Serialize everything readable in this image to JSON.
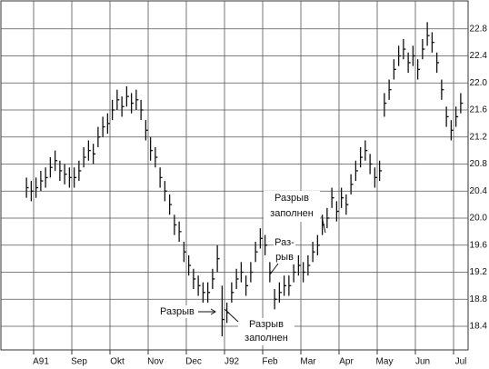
{
  "chart_data": {
    "type": "ohlc",
    "categories": [
      null,
      null,
      "A91",
      null,
      null,
      null,
      null,
      null,
      null,
      null,
      "Sep",
      null,
      null,
      null,
      null,
      null,
      null,
      null,
      "Okt",
      null,
      null,
      null,
      null,
      null,
      null,
      null,
      "Nov",
      null,
      null,
      null,
      null,
      null,
      null,
      null,
      "Dec",
      null,
      null,
      null,
      null,
      null,
      null,
      null,
      "J92",
      null,
      null,
      null,
      null,
      null,
      null,
      null,
      "Feb",
      null,
      null,
      null,
      null,
      null,
      null,
      null,
      "Mar",
      null,
      null,
      null,
      null,
      null,
      null,
      null,
      "Apr",
      null,
      null,
      null,
      null,
      null,
      null,
      null,
      "May",
      null,
      null,
      null,
      null,
      null,
      null,
      null,
      "Jun",
      null,
      null,
      null,
      null,
      null,
      null,
      null,
      "Jul",
      null
    ],
    "high": [
      20.6,
      20.55,
      20.6,
      20.7,
      20.75,
      20.9,
      21.0,
      20.85,
      20.8,
      20.75,
      20.75,
      20.85,
      21.05,
      21.15,
      21.1,
      21.35,
      21.5,
      21.55,
      21.75,
      21.9,
      21.8,
      21.95,
      21.85,
      21.9,
      21.75,
      21.45,
      21.2,
      21.05,
      20.75,
      20.55,
      20.35,
      20.05,
      19.95,
      19.65,
      19.45,
      19.25,
      19.15,
      19.05,
      19.05,
      19.25,
      19.6,
      19.0,
      18.75,
      19.05,
      19.25,
      19.35,
      19.15,
      19.35,
      19.65,
      19.85,
      19.75,
      19.35,
      18.95,
      19.05,
      19.15,
      19.15,
      19.35,
      19.45,
      19.35,
      19.45,
      19.65,
      19.75,
      20.05,
      20.15,
      20.45,
      20.25,
      20.45,
      20.35,
      20.65,
      20.85,
      21.05,
      21.15,
      20.95,
      20.75,
      20.85,
      21.85,
      22.05,
      22.35,
      22.55,
      22.65,
      22.45,
      22.55,
      22.35,
      22.65,
      22.9,
      22.75,
      22.45,
      22.05,
      21.65,
      21.45,
      21.65,
      21.85
    ],
    "low": [
      20.3,
      20.25,
      20.3,
      20.4,
      20.45,
      20.6,
      20.7,
      20.55,
      20.5,
      20.45,
      20.45,
      20.55,
      20.75,
      20.85,
      20.8,
      21.05,
      21.2,
      21.25,
      21.45,
      21.6,
      21.5,
      21.65,
      21.55,
      21.6,
      21.45,
      21.15,
      20.85,
      20.75,
      20.45,
      20.25,
      20.05,
      19.75,
      19.65,
      19.35,
      19.15,
      18.95,
      18.85,
      18.75,
      18.75,
      18.95,
      19.2,
      18.25,
      18.45,
      18.75,
      18.95,
      19.05,
      18.85,
      19.05,
      19.35,
      19.55,
      19.45,
      19.05,
      18.65,
      18.75,
      18.85,
      18.85,
      19.05,
      19.15,
      19.05,
      19.15,
      19.35,
      19.45,
      19.75,
      19.85,
      20.15,
      19.95,
      20.15,
      20.05,
      20.35,
      20.55,
      20.75,
      20.85,
      20.65,
      20.45,
      20.55,
      21.5,
      21.75,
      22.05,
      22.25,
      22.35,
      22.15,
      22.25,
      22.05,
      22.35,
      22.55,
      22.45,
      22.15,
      21.75,
      21.35,
      21.15,
      21.35,
      21.55
    ],
    "close": [
      20.45,
      20.4,
      20.45,
      20.55,
      20.6,
      20.75,
      20.85,
      20.7,
      20.65,
      20.6,
      20.6,
      20.7,
      20.9,
      21.0,
      20.95,
      21.2,
      21.35,
      21.4,
      21.6,
      21.75,
      21.65,
      21.8,
      21.7,
      21.75,
      21.6,
      21.3,
      21.0,
      20.9,
      20.6,
      20.4,
      20.2,
      19.9,
      19.8,
      19.5,
      19.3,
      19.1,
      19.0,
      18.9,
      18.9,
      19.1,
      19.4,
      18.5,
      18.6,
      18.9,
      19.1,
      19.2,
      19.0,
      19.2,
      19.5,
      19.7,
      19.6,
      19.2,
      18.8,
      18.9,
      19.0,
      19.0,
      19.2,
      19.3,
      19.2,
      19.3,
      19.5,
      19.6,
      19.9,
      20.0,
      20.3,
      20.1,
      20.3,
      20.2,
      20.5,
      20.7,
      20.9,
      21.0,
      20.8,
      20.6,
      20.7,
      21.7,
      21.9,
      22.2,
      22.4,
      22.5,
      22.3,
      22.4,
      22.2,
      22.5,
      22.7,
      22.6,
      22.3,
      21.9,
      21.5,
      21.3,
      21.5,
      21.7
    ],
    "color": "#111111",
    "ylim": [
      18.05,
      23.2
    ],
    "yticks": [
      {
        "value": 18.4,
        "label": "18.4"
      },
      {
        "value": 18.8,
        "label": "18.8"
      },
      {
        "value": 19.2,
        "label": "19.2"
      },
      {
        "value": 19.6,
        "label": "19.6"
      },
      {
        "value": 20.0,
        "label": "20.0"
      },
      {
        "value": 20.4,
        "label": "20.4"
      },
      {
        "value": 20.8,
        "label": "20.8"
      },
      {
        "value": 21.2,
        "label": "21.2"
      },
      {
        "value": 21.6,
        "label": "21.6"
      },
      {
        "value": 22.0,
        "label": "22.0"
      },
      {
        "value": 22.4,
        "label": "22.4"
      },
      {
        "value": 22.8,
        "label": "22.8"
      }
    ],
    "grid": true,
    "annotations": [
      {
        "lines": [
          "Разрыв",
          "заполнен"
        ]
      },
      {
        "lines": [
          "Раз-",
          "рыв"
        ]
      },
      {
        "lines": [
          "Разрыв"
        ]
      },
      {
        "lines": [
          "Разрыв",
          "заполнен"
        ]
      }
    ]
  }
}
